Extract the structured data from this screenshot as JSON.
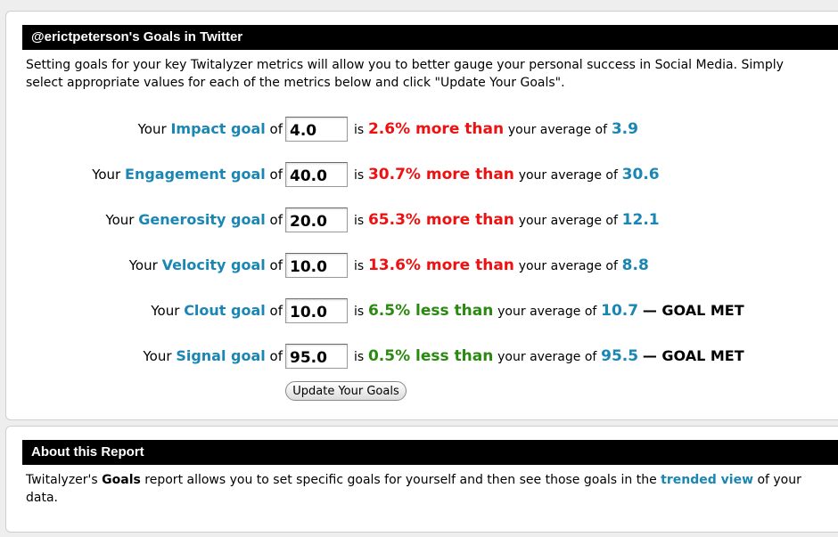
{
  "goals": {
    "header": "@erictpeterson's Goals in Twitter",
    "intro": "Setting goals for your key Twitalyzer metrics will allow you to better gauge your personal success in Social Media.  Simply select appropriate values for each of the metrics below and click \"Update Your Goals\".",
    "word_your": "Your",
    "word_of": "of",
    "word_is": "is",
    "word_avg": "your average of",
    "goal_met_label": "— GOAL MET",
    "rows": [
      {
        "metric": "Impact goal",
        "value": "4.0",
        "pct": "2.6% more than",
        "avg": "3.9",
        "met": ""
      },
      {
        "metric": "Engagement goal",
        "value": "40.0",
        "pct": "30.7% more than",
        "avg": "30.6",
        "met": ""
      },
      {
        "metric": "Generosity goal",
        "value": "20.0",
        "pct": "65.3% more than",
        "avg": "12.1",
        "met": ""
      },
      {
        "metric": "Velocity goal",
        "value": "10.0",
        "pct": "13.6% more than",
        "avg": "8.8",
        "met": ""
      },
      {
        "metric": "Clout goal",
        "value": "10.0",
        "pct": "6.5% less than",
        "avg": "10.7",
        "met": "— GOAL MET"
      },
      {
        "metric": "Signal goal",
        "value": "95.0",
        "pct": "0.5% less than",
        "avg": "95.5",
        "met": "— GOAL MET"
      }
    ],
    "update_button": "Update Your Goals"
  },
  "about": {
    "header": "About this Report",
    "text_pre": "Twitalyzer's",
    "text_bold": "Goals",
    "text_mid": "report allows you to set specific goals for yourself and then see those goals in the",
    "link": "trended view",
    "text_post": "of your data."
  },
  "colors": {
    "metric_blue": "#1a86b4",
    "more_red": "#ee1111",
    "less_green": "#2a8a10",
    "header_bg": "#000000"
  }
}
